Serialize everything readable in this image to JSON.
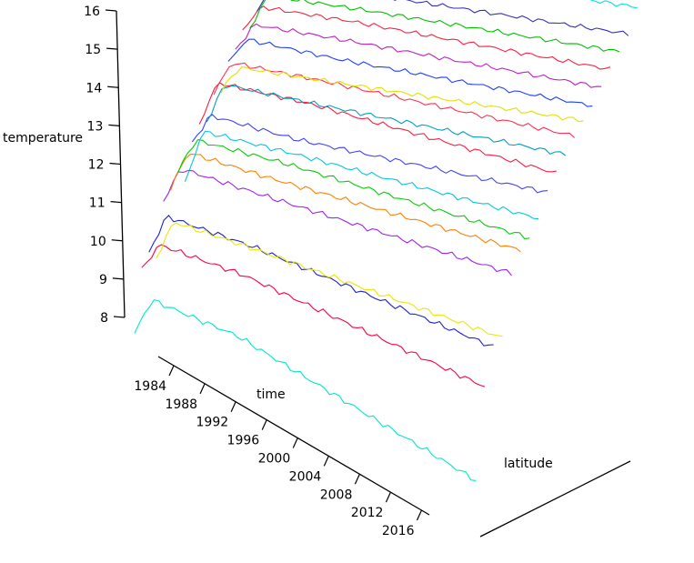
{
  "chart_data": {
    "type": "line",
    "projection": "3d-perspective",
    "title": "",
    "zlabel": "temperature",
    "xlabel": "time",
    "ylabel": "latitude",
    "z_ticks": [
      "8",
      "9",
      "10",
      "11",
      "12",
      "13",
      "14",
      "15",
      "16"
    ],
    "time_ticks": [
      "1984",
      "1988",
      "1992",
      "1996",
      "2000",
      "2004",
      "2008",
      "2012",
      "2016"
    ],
    "time_range": [
      1982,
      2017
    ],
    "z_range": [
      8,
      16
    ],
    "latitude_axis_ticks": false,
    "grid": false,
    "legend": "none",
    "series": [
      {
        "color": "#00e8c8",
        "values": [
          7.8,
          8.8,
          8.5,
          6.5
        ]
      },
      {
        "color": "#ff0040",
        "values": [
          9.2,
          10.0,
          9.8,
          8.6
        ]
      },
      {
        "color": "#2020d0",
        "values": [
          9.4,
          10.5,
          10.3,
          9.3
        ]
      },
      {
        "color": "#e8e800",
        "values": [
          9.0,
          10.1,
          9.9,
          9.2
        ]
      },
      {
        "color": "#a020f0",
        "values": [
          10.3,
          11.3,
          11.1,
          10.6
        ]
      },
      {
        "color": "#ff8000",
        "values": [
          10.4,
          11.5,
          11.3,
          10.9
        ]
      },
      {
        "color": "#00d000",
        "values": [
          10.6,
          11.6,
          11.5,
          10.9
        ]
      },
      {
        "color": "#00c8e0",
        "values": [
          10.0,
          11.6,
          11.5,
          11.1
        ]
      },
      {
        "color": "#4040ff",
        "values": [
          10.9,
          11.8,
          11.6,
          11.5
        ]
      },
      {
        "color": "#ff1a40",
        "values": [
          11.2,
          12.5,
          12.4,
          11.7
        ]
      },
      {
        "color": "#00a0c0",
        "values": [
          11.0,
          12.2,
          12.1,
          11.9
        ]
      },
      {
        "color": "#ff3050",
        "values": [
          11.6,
          12.6,
          12.5,
          12.1
        ]
      },
      {
        "color": "#e0e000",
        "values": [
          11.4,
          12.2,
          12.2,
          12.2
        ]
      },
      {
        "color": "#2040ff",
        "values": [
          12.0,
          12.8,
          12.6,
          12.3
        ]
      },
      {
        "color": "#c020c0",
        "values": [
          12.1,
          13.0,
          12.9,
          12.5
        ]
      },
      {
        "color": "#ff2040",
        "values": [
          12.5,
          13.3,
          13.2,
          12.7
        ]
      },
      {
        "color": "#00c000",
        "values": [
          12.3,
          13.4,
          13.3,
          12.9
        ]
      },
      {
        "color": "#3030c0",
        "values": [
          12.6,
          13.6,
          13.5,
          13.1
        ]
      },
      {
        "color": "#00e0e0",
        "values": [
          13.3,
          14.3,
          14.1,
          13.6
        ]
      },
      {
        "color": "#e8e800",
        "values": [
          13.5,
          14.5,
          14.2,
          13.9
        ]
      },
      {
        "color": "#ff0020",
        "values": [
          13.6,
          14.6,
          14.4,
          14.0
        ]
      },
      {
        "color": "#ff9000",
        "values": [
          13.4,
          14.5,
          14.3,
          14.1
        ]
      },
      {
        "color": "#0040ff",
        "values": [
          13.7,
          14.6,
          14.4,
          14.3
        ]
      },
      {
        "color": "#20e0c0",
        "values": [
          14.2,
          15.2,
          15.0,
          14.6
        ]
      }
    ]
  }
}
